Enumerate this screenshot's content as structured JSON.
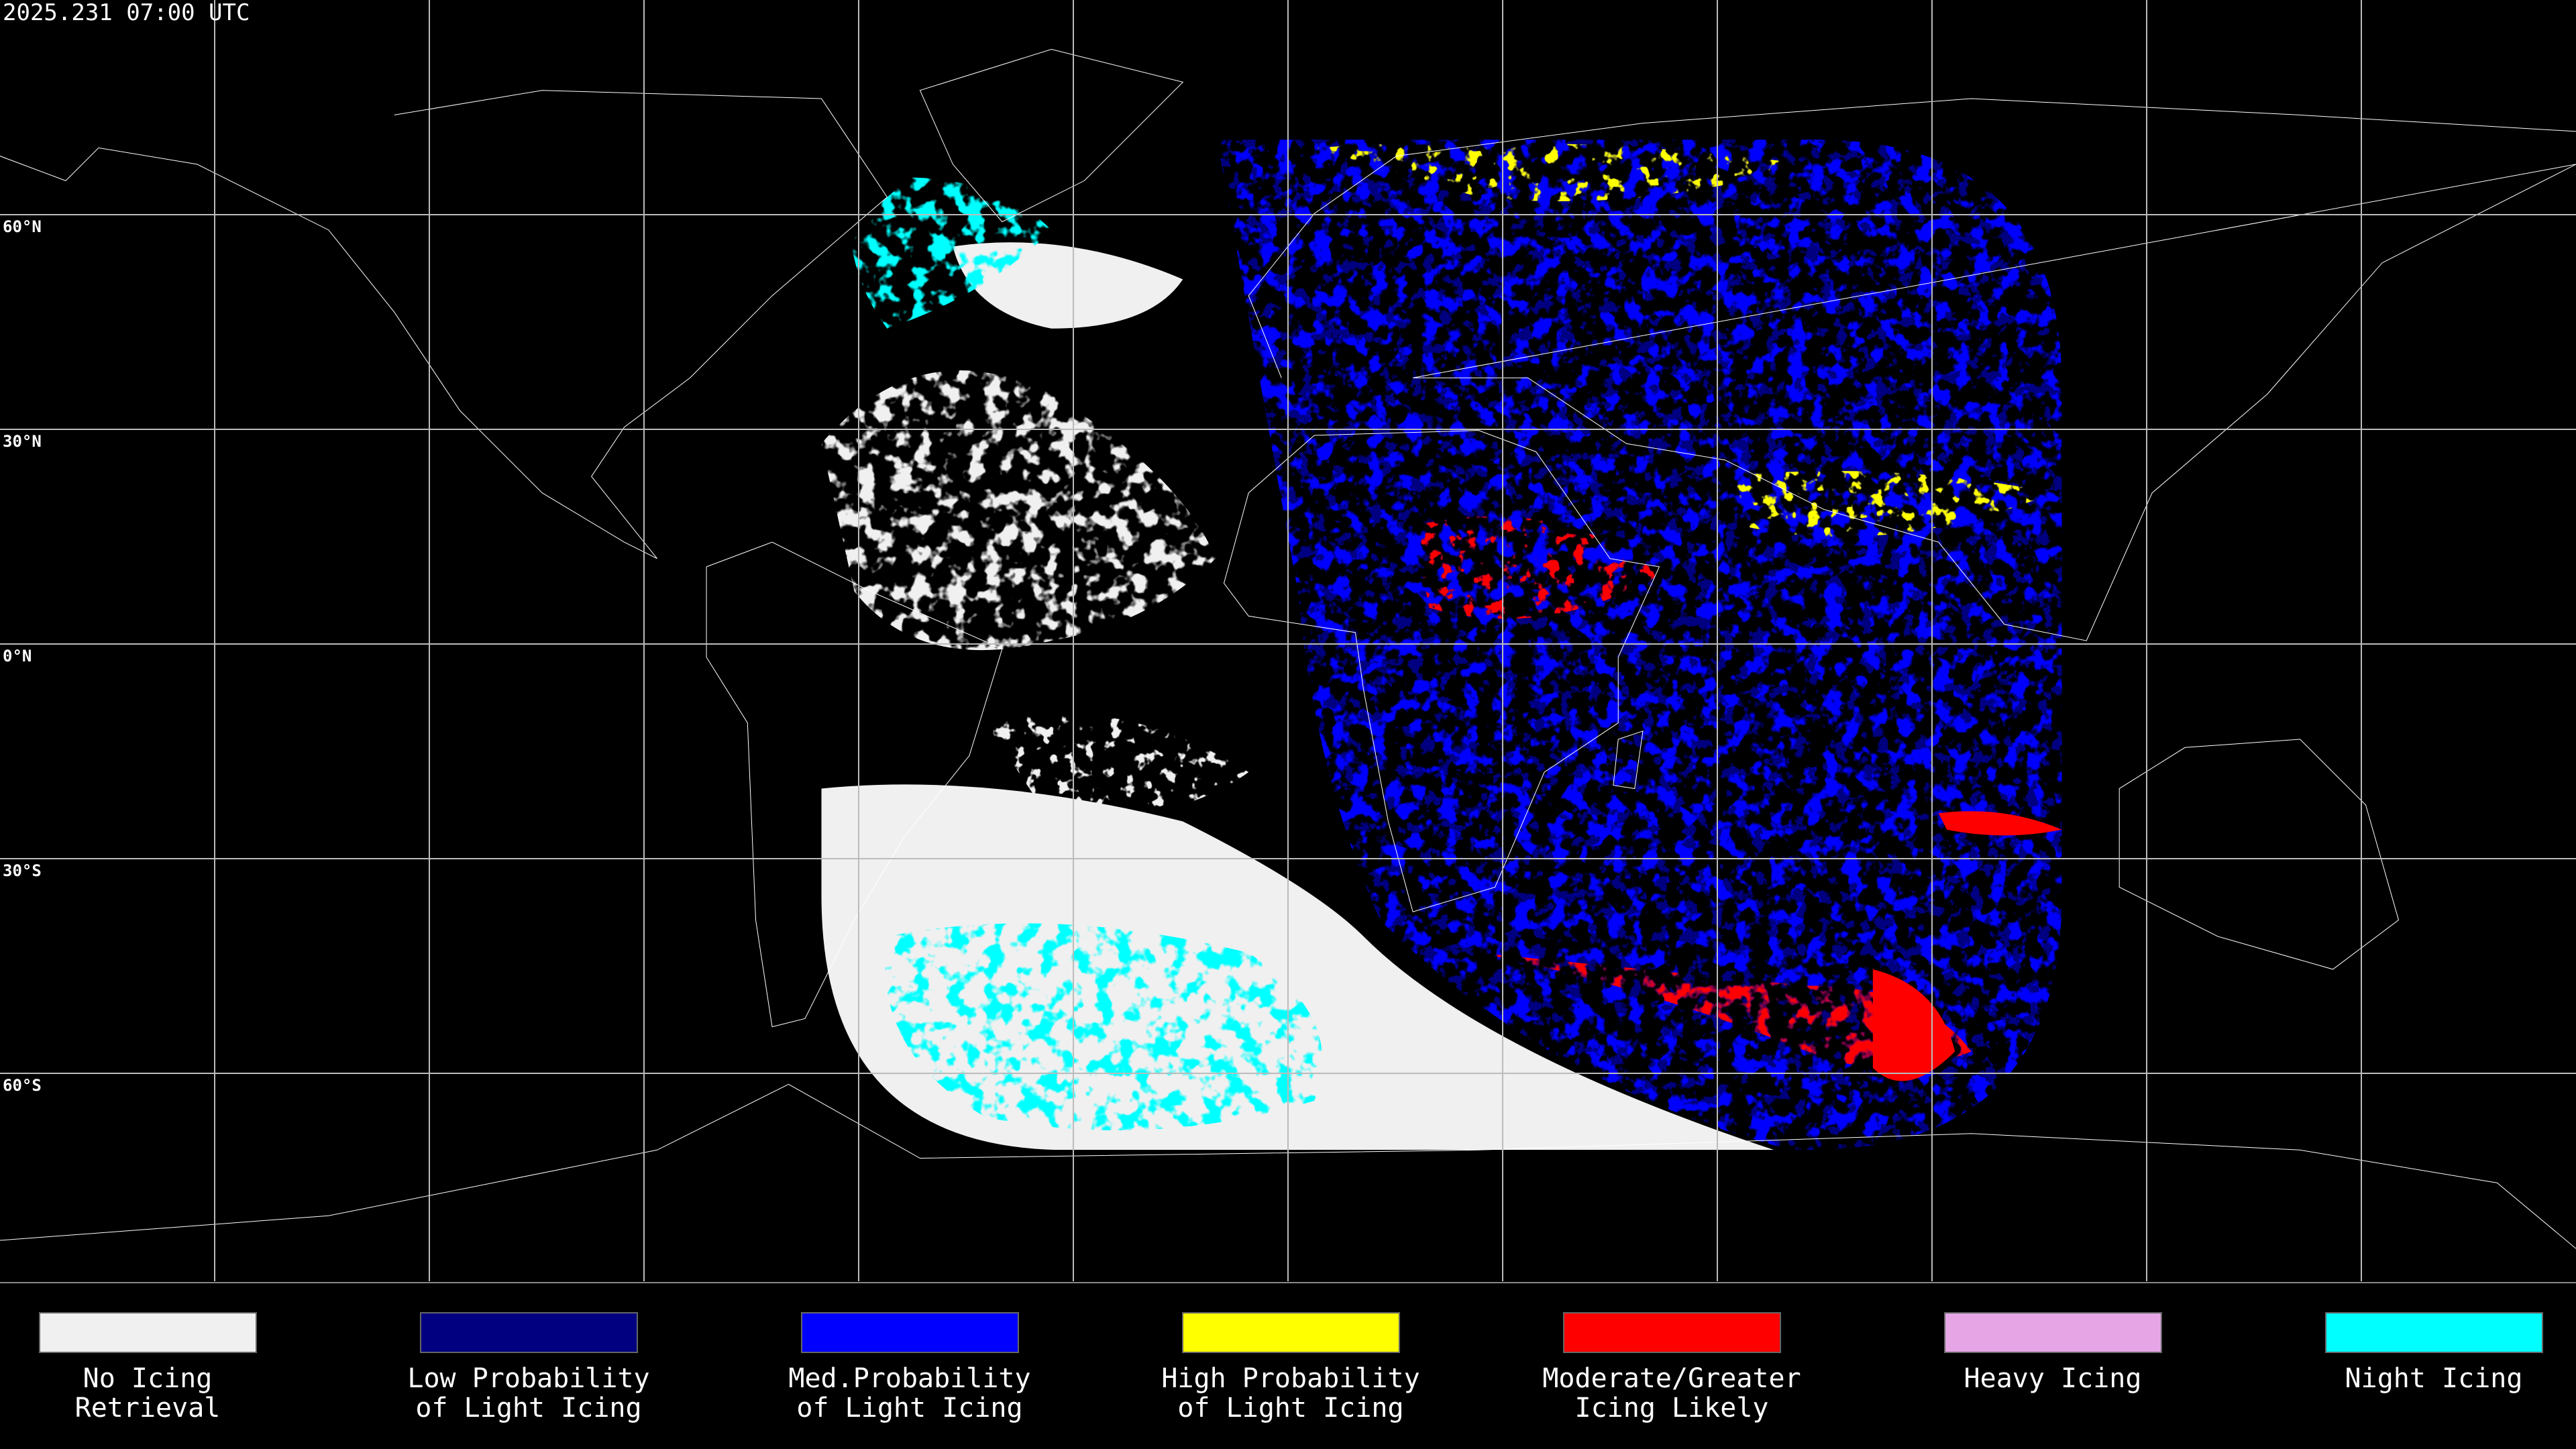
{
  "header": {
    "timestamp": "2025.231 07:00 UTC"
  },
  "map": {
    "latitude_labels": [
      "60°N",
      "30°N",
      "0°N",
      "30°S",
      "60°S"
    ]
  },
  "legend": {
    "items": [
      {
        "color": "#f0f0f0",
        "label": [
          "No Icing",
          "Retrieval"
        ]
      },
      {
        "color": "#000080",
        "label": [
          "Low Probability",
          "of Light Icing"
        ]
      },
      {
        "color": "#0000ff",
        "label": [
          "Med.Probability",
          "of Light Icing"
        ]
      },
      {
        "color": "#ffff00",
        "label": [
          "High Probability",
          "of Light Icing"
        ]
      },
      {
        "color": "#ff0000",
        "label": [
          "Moderate/Greater",
          "Icing Likely"
        ]
      },
      {
        "color": "#e6a6e6",
        "label": [
          "Heavy Icing"
        ]
      },
      {
        "color": "#00ffff",
        "label": [
          "Night Icing"
        ]
      }
    ]
  }
}
